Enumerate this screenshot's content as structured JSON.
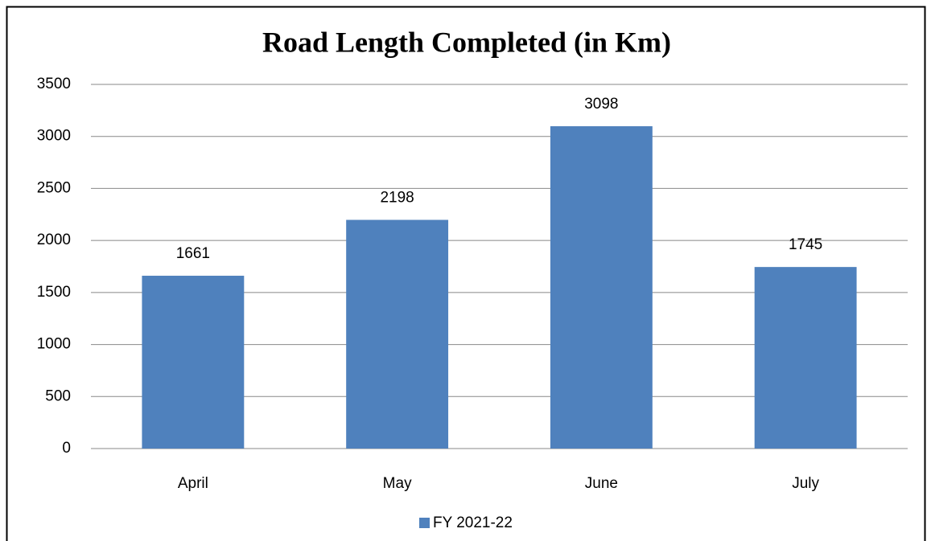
{
  "chart_data": {
    "type": "bar",
    "title": "Road Length Completed (in Km)",
    "categories": [
      "April",
      "May",
      "June",
      "July"
    ],
    "series": [
      {
        "name": "FY 2021-22",
        "color": "#4f81bd",
        "values": [
          1661,
          2198,
          3098,
          1745
        ]
      }
    ],
    "ylim": [
      0,
      3500
    ],
    "yticks": [
      0,
      500,
      1000,
      1500,
      2000,
      2500,
      3000,
      3500
    ],
    "grid": true,
    "legend": "bottom"
  }
}
